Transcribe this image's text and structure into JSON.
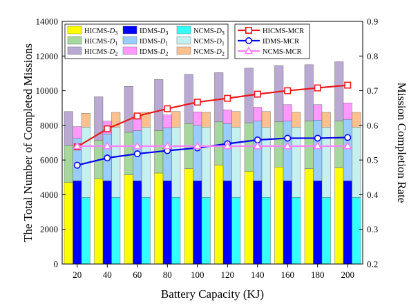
{
  "chart_data": {
    "type": "bar",
    "xlabel": "Battery Capacity (KJ)",
    "ylabel": "The Total Number of Completed Missions",
    "y2label": "Mission Completion Rate",
    "categories": [
      "20",
      "40",
      "60",
      "80",
      "100",
      "120",
      "140",
      "160",
      "180",
      "200"
    ],
    "ylim": [
      0,
      14000
    ],
    "y_ticks": [
      "0",
      "2000",
      "4000",
      "6000",
      "8000",
      "10000",
      "12000",
      "14000"
    ],
    "y2lim": [
      0.2,
      0.9
    ],
    "y2_ticks": [
      "0.2",
      "0.3",
      "0.4",
      "0.5",
      "0.6",
      "0.7",
      "0.8",
      "0.9"
    ],
    "legend_position": "top",
    "stacked_groups": [
      {
        "group": "HICMS",
        "layers": [
          {
            "name": "HICMS-D3",
            "label": "HICMS-",
            "sub": "3",
            "color": "#ffff00",
            "values": [
              4700,
              4900,
              5150,
              5250,
              5500,
              5700,
              5350,
              5600,
              5500,
              5550
            ]
          },
          {
            "name": "HICMS-D1",
            "label": "HICMS-",
            "sub": "1",
            "color": "#a6d89e",
            "values": [
              2130,
              2230,
              2450,
              2450,
              2600,
              2500,
              2800,
              2600,
              2750,
              2700
            ]
          },
          {
            "name": "HICMS-D2",
            "label": "HICMS-",
            "sub": "2",
            "color": "#b9a9d3",
            "values": [
              1970,
              2520,
              2650,
              2950,
              2850,
              2850,
              3150,
              3250,
              3250,
              3420
            ]
          }
        ]
      },
      {
        "group": "IDMS",
        "layers": [
          {
            "name": "IDMS-D3",
            "label": "IDMS-",
            "sub": "3",
            "color": "#0000ff",
            "values": [
              4800,
              4800,
              4800,
              4800,
              4800,
              4800,
              4800,
              4800,
              4800,
              4800
            ]
          },
          {
            "name": "IDMS-D1",
            "label": "IDMS-",
            "sub": "1",
            "color": "#99ccff",
            "values": [
              2450,
              2700,
              2900,
              3050,
              3200,
              3300,
              3450,
              3450,
              3500,
              3550
            ]
          },
          {
            "name": "IDMS-D2",
            "label": "IDMS-",
            "sub": "2",
            "color": "#ff99ff",
            "values": [
              680,
              750,
              900,
              750,
              780,
              800,
              800,
              950,
              900,
              950
            ]
          }
        ]
      },
      {
        "group": "NCMS",
        "layers": [
          {
            "name": "NCMS-D3",
            "label": "NCMS-",
            "sub": "3",
            "color": "#33ffff",
            "values": [
              3850,
              3850,
              3850,
              3850,
              3850,
              3850,
              3850,
              3850,
              3850,
              3850
            ]
          },
          {
            "name": "NCMS-D1",
            "label": "NCMS-",
            "sub": "1",
            "color": "#c5f0f0",
            "values": [
              4050,
              4050,
              4050,
              4050,
              4050,
              4050,
              4050,
              4050,
              4050,
              4050
            ]
          },
          {
            "name": "NCMS-D2",
            "label": "NCMS-",
            "sub": "2",
            "color": "#ffc090",
            "values": [
              800,
              850,
              850,
              900,
              850,
              900,
              900,
              850,
              850,
              850
            ]
          }
        ]
      }
    ],
    "lines": [
      {
        "name": "HICMS-MCR",
        "color": "#e8191a",
        "marker": "square",
        "values": [
          0.538,
          0.59,
          0.627,
          0.648,
          0.667,
          0.678,
          0.69,
          0.7,
          0.708,
          0.716
        ]
      },
      {
        "name": "IDMS-MCR",
        "color": "#0000ee",
        "marker": "circle",
        "values": [
          0.485,
          0.506,
          0.518,
          0.527,
          0.535,
          0.547,
          0.558,
          0.563,
          0.563,
          0.565
        ]
      },
      {
        "name": "NCMS-MCR",
        "color": "#ff80ff",
        "marker": "triangle",
        "values": [
          0.54,
          0.54,
          0.54,
          0.54,
          0.54,
          0.54,
          0.54,
          0.54,
          0.54,
          0.54
        ]
      }
    ]
  }
}
